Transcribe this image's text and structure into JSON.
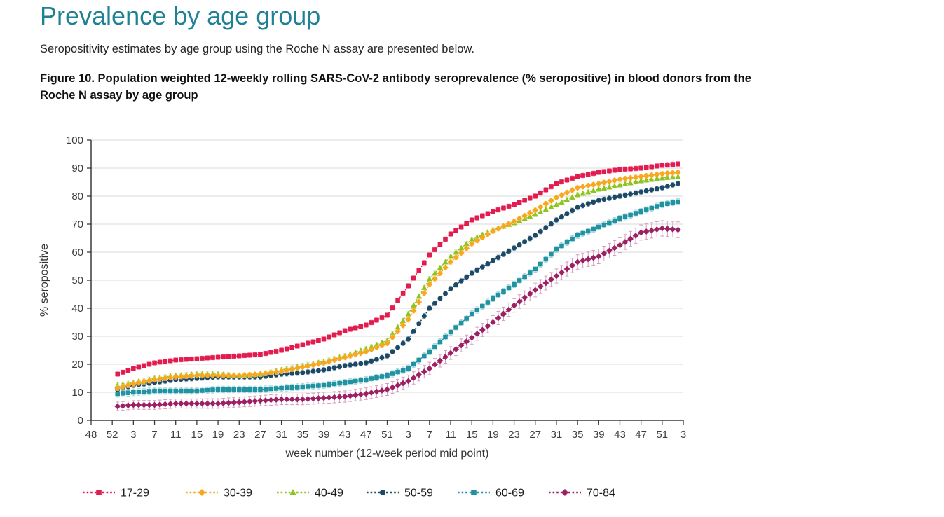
{
  "page": {
    "title": "Prevalence by age group",
    "title_color": "#1f8194",
    "intro": "Seropositivity estimates by age group using the Roche N assay are presented below.",
    "figure_caption_line1": "Figure 10. Population weighted 12-weekly rolling SARS-CoV-2 antibody seroprevalence (% seropositive) in blood donors from the",
    "figure_caption_line2": "Roche N assay by age group"
  },
  "chart_data": {
    "type": "line",
    "title": "",
    "xlabel": "week number (12-week period mid point)",
    "ylabel": "% seropositive",
    "ylim": [
      0,
      100
    ],
    "y_ticks": [
      0,
      10,
      20,
      30,
      40,
      50,
      60,
      70,
      80,
      90,
      100
    ],
    "grid": "horizontal-light-gray",
    "legend_position": "bottom",
    "x_tick_labels": [
      "48",
      "52",
      "3",
      "7",
      "11",
      "15",
      "19",
      "23",
      "27",
      "31",
      "35",
      "39",
      "43",
      "47",
      "51",
      "3",
      "7",
      "11",
      "15",
      "19",
      "23",
      "27",
      "31",
      "35",
      "39",
      "43",
      "47",
      "51",
      "3"
    ],
    "x_tick_week_spacing": 4,
    "weeks_total": 112,
    "week_offsets": [
      5,
      8,
      12,
      16,
      20,
      24,
      28,
      32,
      36,
      40,
      44,
      48,
      52,
      56,
      60,
      64,
      68,
      72,
      76,
      80,
      84,
      88,
      92,
      96,
      100,
      104,
      108,
      111
    ],
    "series": [
      {
        "name": "17-29",
        "color": "#e31c4f",
        "ci_color": "#f5afc2",
        "marker": "square",
        "ci": [
          0.8,
          0.9
        ],
        "values": [
          16.5,
          18.5,
          20.5,
          21.5,
          22,
          22.5,
          23,
          23.5,
          25,
          27,
          29,
          32,
          34,
          37.5,
          48,
          59,
          66.5,
          71.5,
          74.5,
          77,
          80,
          84.5,
          87,
          88.5,
          89.5,
          90,
          91,
          91.5
        ]
      },
      {
        "name": "30-39",
        "color": "#f7a81f",
        "ci_color": "#fbdda4",
        "marker": "diamond",
        "ci": [
          0.8,
          0.8
        ],
        "values": [
          11.5,
          13,
          14.5,
          15.5,
          16,
          16,
          16,
          16.5,
          17.5,
          19,
          20.5,
          22.5,
          24.5,
          27.5,
          36,
          48.5,
          56.5,
          63,
          67.5,
          71,
          75,
          79.5,
          83,
          84.5,
          86,
          87,
          88,
          88.5
        ]
      },
      {
        "name": "40-49",
        "color": "#8fc31f",
        "ci_color": "#d6e8a9",
        "marker": "triangle",
        "ci": [
          0.8,
          0.8
        ],
        "values": [
          12.5,
          13.5,
          15,
          16,
          16.5,
          16.5,
          16,
          16.5,
          18,
          19.5,
          21,
          23,
          25.5,
          28.5,
          38,
          50.5,
          58.5,
          64.5,
          68,
          70.5,
          73.5,
          77,
          80.5,
          82.5,
          84,
          85.5,
          86.5,
          87
        ]
      },
      {
        "name": "50-59",
        "color": "#1c4a66",
        "ci_color": "#a7bfce",
        "marker": "circle",
        "ci": [
          0.9,
          0.9
        ],
        "values": [
          11,
          12.5,
          13.5,
          14.5,
          15,
          15.5,
          15.5,
          15.5,
          16.5,
          17,
          18,
          19.5,
          20.5,
          23,
          29,
          40,
          47,
          52.5,
          57,
          61.5,
          66,
          71.5,
          76,
          78.5,
          80,
          81.5,
          83,
          84.5
        ]
      },
      {
        "name": "60-69",
        "color": "#1f93a1",
        "ci_color": "#a5d6dc",
        "marker": "square",
        "ci": [
          1.2,
          1.1
        ],
        "values": [
          9.5,
          10,
          10.5,
          10.5,
          10.5,
          11,
          11,
          11,
          11.5,
          12,
          12.5,
          13.5,
          14.5,
          16,
          18.5,
          24.5,
          31.5,
          38,
          43.5,
          48.5,
          54,
          61,
          66,
          69,
          72,
          74.5,
          77,
          78
        ]
      },
      {
        "name": "70-84",
        "color": "#9c2063",
        "ci_color": "#d39cbf",
        "marker": "diamond",
        "ci": [
          1.5,
          2.8
        ],
        "values": [
          5,
          5.5,
          5.5,
          6,
          6,
          6,
          6.5,
          7,
          7.5,
          7.5,
          8,
          8.5,
          9.5,
          11,
          14,
          18.5,
          24,
          29.5,
          35,
          41,
          46.5,
          51.5,
          56.5,
          58.5,
          62.5,
          67,
          68.5,
          68
        ]
      }
    ]
  }
}
